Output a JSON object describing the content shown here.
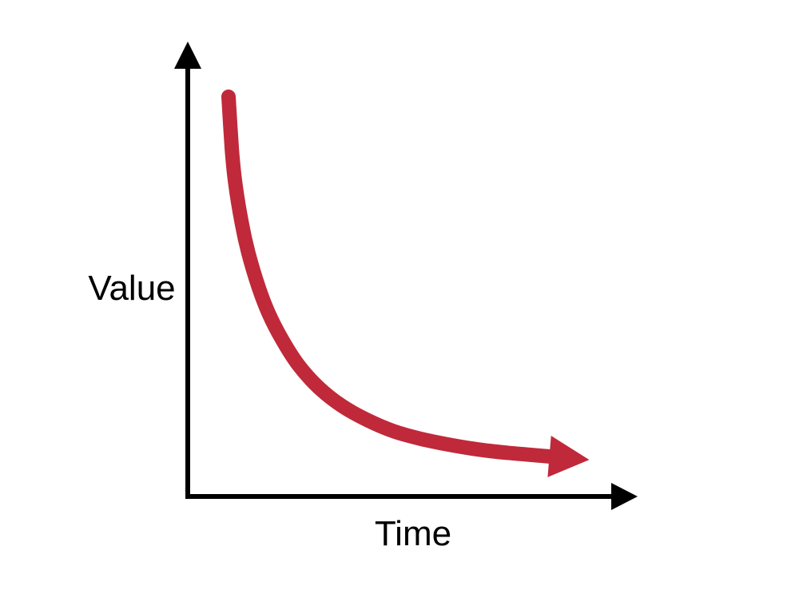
{
  "chart_data": {
    "type": "line",
    "xlabel": "Time",
    "ylabel": "Value",
    "title": "",
    "grid": false,
    "legend": "none",
    "series": [
      {
        "x": [
          0,
          0.01,
          0.02,
          0.04,
          0.06,
          0.09,
          0.12,
          0.16,
          0.21,
          0.27,
          0.34,
          0.42,
          0.5,
          0.58,
          0.66,
          0.74,
          0.81,
          0.87,
          0.92,
          1.0
        ],
        "y": [
          1.0,
          0.86,
          0.77,
          0.66,
          0.58,
          0.49,
          0.42,
          0.35,
          0.28,
          0.22,
          0.17,
          0.13,
          0.1,
          0.08,
          0.065,
          0.053,
          0.045,
          0.04,
          0.036,
          0.03
        ]
      }
    ],
    "colors": {
      "axis": "#000000",
      "curve": "#c0293a"
    }
  }
}
